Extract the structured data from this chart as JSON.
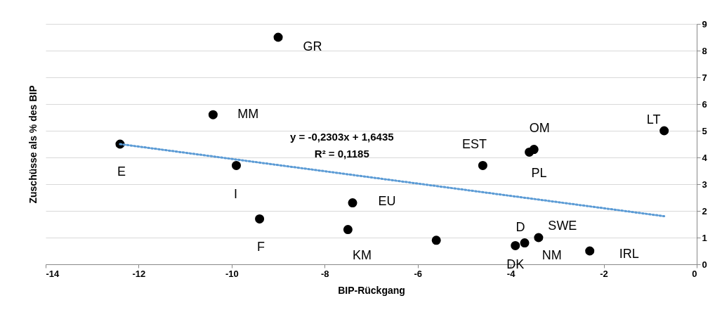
{
  "chart_data": {
    "type": "scatter",
    "xlabel": "BIP-Rückgang",
    "ylabel": "Zuschüsse als % des BIP",
    "xlim": [
      -14,
      0
    ],
    "xticks": [
      -14,
      -12,
      -10,
      -8,
      -6,
      -4,
      -2,
      0
    ],
    "ylim": [
      0,
      9
    ],
    "yticks": [
      0,
      1,
      2,
      3,
      4,
      5,
      6,
      7,
      8,
      9
    ],
    "grid": "y",
    "series": [
      {
        "color": "#000000",
        "marker": "circle",
        "x": [
          -9,
          -10.4,
          -12.4,
          -9.9,
          -7.4,
          -9.4,
          -7.5,
          -5.6,
          -4.6,
          -3.6,
          -3.5,
          -0.7,
          -3.7,
          -3.9,
          -3.4,
          -2.3
        ],
        "values": [
          8.5,
          5.6,
          4.5,
          3.7,
          2.3,
          1.7,
          1.3,
          0.9,
          3.7,
          4.2,
          4.3,
          5.0,
          0.8,
          0.7,
          1.0,
          0.5
        ]
      },
      {
        "type": "line",
        "color": "#5b9bd5",
        "marker": "none",
        "line_style": "dotted",
        "x": [
          -12.4,
          -0.7
        ],
        "values": [
          4.5,
          1.8
        ]
      }
    ],
    "annotations": [
      {
        "text": "GR",
        "x": -9,
        "y": 8.5
      },
      {
        "text": "MM",
        "x": -10.4,
        "y": 5.6
      },
      {
        "text": "E",
        "x": -12.4,
        "y": 4.5
      },
      {
        "text": "I",
        "x": -9.9,
        "y": 3.7
      },
      {
        "text": "EU",
        "x": -7.4,
        "y": 2.3
      },
      {
        "text": "F",
        "x": -9.4,
        "y": 1.7
      },
      {
        "text": "KM",
        "x": -7.5,
        "y": 1.3
      },
      {
        "text": "EST",
        "x": -4.6,
        "y": 3.7
      },
      {
        "text": "OM",
        "x": -3.5,
        "y": 4.3
      },
      {
        "text": "PL",
        "x": -3.6,
        "y": 4.2
      },
      {
        "text": "LT",
        "x": -0.7,
        "y": 5.0
      },
      {
        "text": "D",
        "x": -3.7,
        "y": 0.8
      },
      {
        "text": "SWE",
        "x": -3.4,
        "y": 1.0
      },
      {
        "text": "DK",
        "x": -3.9,
        "y": 0.7
      },
      {
        "text": "NM",
        "x": -3.4,
        "y": 1.0
      },
      {
        "text": "IRL",
        "x": -2.3,
        "y": 0.5
      },
      "y = -0,2303x + 1,6435",
      "R² = 0,1185"
    ]
  }
}
